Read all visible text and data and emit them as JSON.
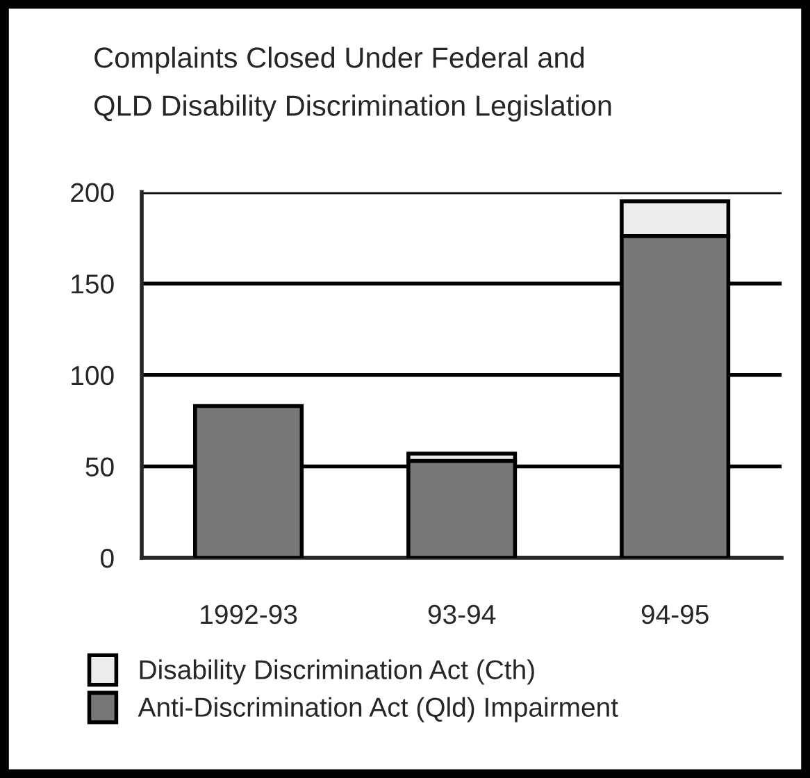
{
  "chart_data": {
    "type": "bar",
    "title": "Complaints Closed Under Federal and\nQLD Disability Discrimination Legislation",
    "categories": [
      "1992-93",
      "93-94",
      "94-95"
    ],
    "series": [
      {
        "name": "Anti-Discrimination Act (Qld) Impairment",
        "color": "#777777",
        "values": [
          83,
          53,
          176
        ]
      },
      {
        "name": "Disability Discrimination Act (Cth)",
        "color": "#ececec",
        "values": [
          null,
          4,
          19
        ]
      }
    ],
    "stacked": true,
    "ylim": [
      0,
      200
    ],
    "yticks": [
      0,
      50,
      100,
      150,
      200
    ],
    "grid": "y",
    "legend": "bottom"
  }
}
